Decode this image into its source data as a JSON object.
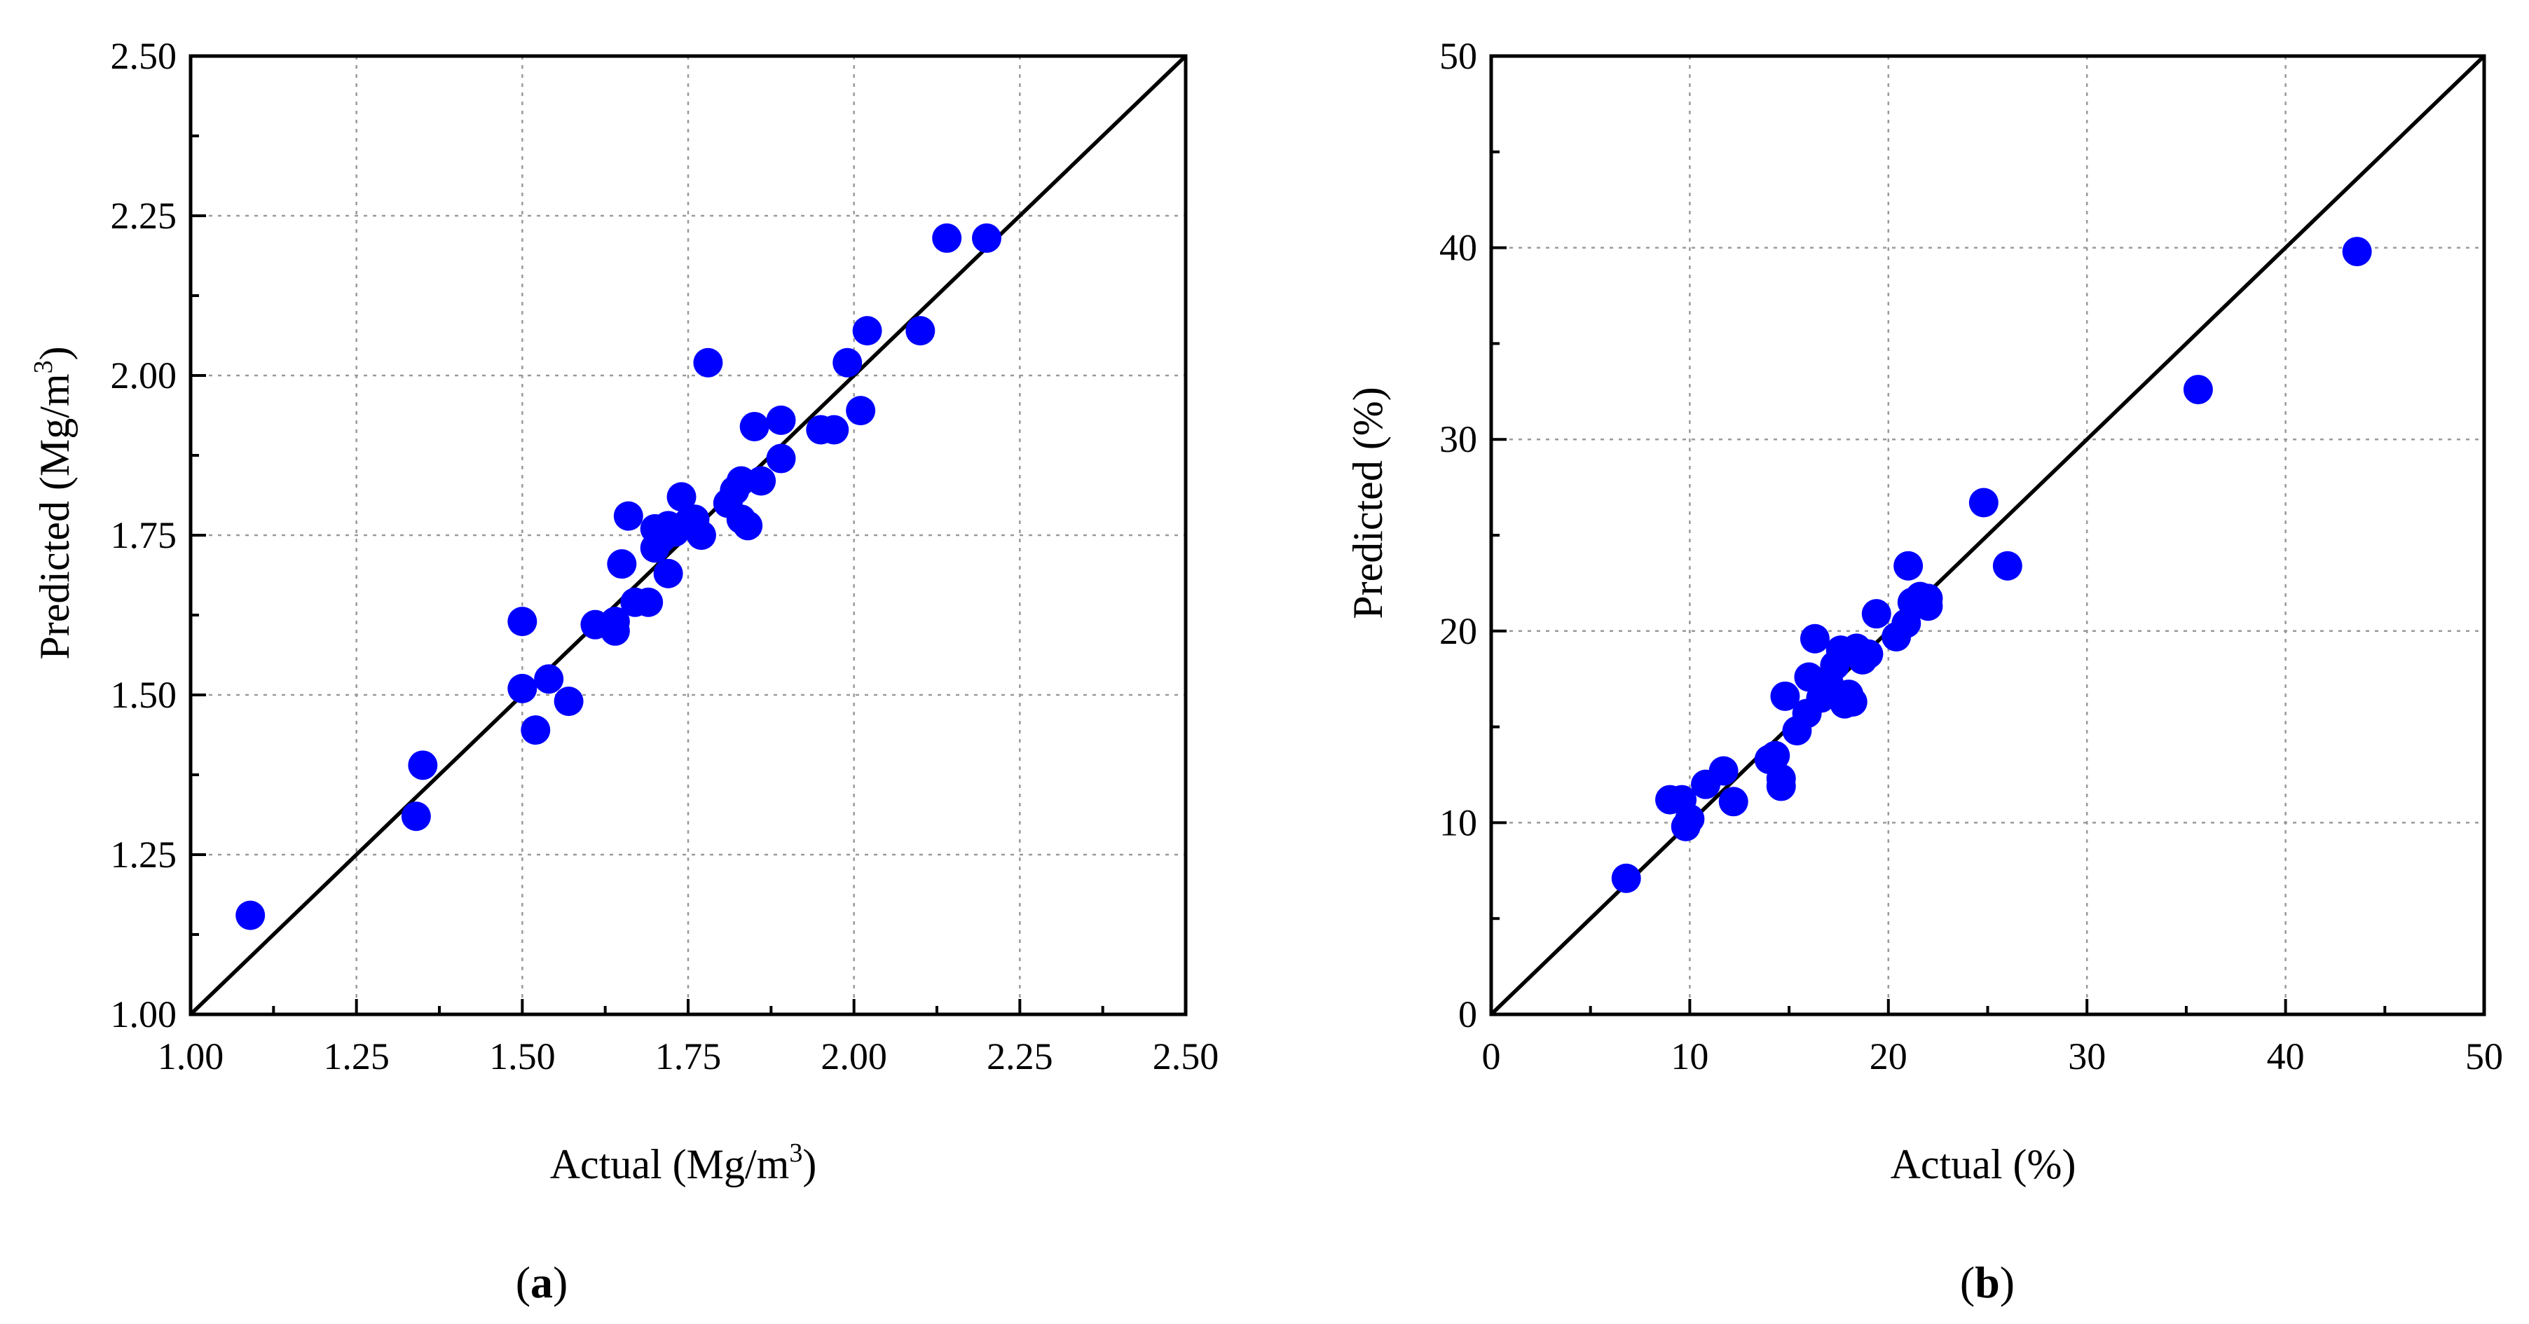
{
  "chart_data": [
    {
      "type": "scatter",
      "panel_label": "a",
      "title": "",
      "xlabel": "Actual (Mg/m",
      "xlabel_sup": "3",
      "xlabel_tail": ")",
      "ylabel": "Predicted (Mg/m",
      "ylabel_sup": "3",
      "ylabel_tail": ")",
      "xlim": [
        1.0,
        2.5
      ],
      "ylim": [
        1.0,
        2.5
      ],
      "xticks": [
        "1.00",
        "1.25",
        "1.50",
        "1.75",
        "2.00",
        "2.25",
        "2.50"
      ],
      "yticks": [
        "1.00",
        "1.25",
        "1.50",
        "1.75",
        "2.00",
        "2.25",
        "2.50"
      ],
      "grid": true,
      "reference_line": "y = x",
      "marker_color": "#0000ff",
      "points": [
        [
          1.09,
          1.155
        ],
        [
          1.34,
          1.31
        ],
        [
          1.35,
          1.39
        ],
        [
          1.5,
          1.615
        ],
        [
          1.5,
          1.51
        ],
        [
          1.52,
          1.445
        ],
        [
          1.54,
          1.525
        ],
        [
          1.57,
          1.49
        ],
        [
          1.61,
          1.61
        ],
        [
          1.64,
          1.6
        ],
        [
          1.64,
          1.615
        ],
        [
          1.65,
          1.705
        ],
        [
          1.66,
          1.78
        ],
        [
          1.67,
          1.645
        ],
        [
          1.69,
          1.645
        ],
        [
          1.7,
          1.73
        ],
        [
          1.7,
          1.76
        ],
        [
          1.71,
          1.745
        ],
        [
          1.72,
          1.69
        ],
        [
          1.72,
          1.765
        ],
        [
          1.73,
          1.755
        ],
        [
          1.74,
          1.81
        ],
        [
          1.75,
          1.77
        ],
        [
          1.76,
          1.775
        ],
        [
          1.77,
          1.75
        ],
        [
          1.78,
          2.02
        ],
        [
          1.81,
          1.8
        ],
        [
          1.82,
          1.82
        ],
        [
          1.83,
          1.835
        ],
        [
          1.83,
          1.775
        ],
        [
          1.84,
          1.765
        ],
        [
          1.85,
          1.92
        ],
        [
          1.86,
          1.835
        ],
        [
          1.89,
          1.93
        ],
        [
          1.89,
          1.87
        ],
        [
          1.95,
          1.915
        ],
        [
          1.97,
          1.915
        ],
        [
          1.99,
          2.02
        ],
        [
          2.01,
          1.945
        ],
        [
          2.02,
          2.07
        ],
        [
          2.1,
          2.07
        ],
        [
          2.14,
          2.215
        ],
        [
          2.2,
          2.215
        ]
      ]
    },
    {
      "type": "scatter",
      "panel_label": "b",
      "title": "",
      "xlabel": "Actual (%)",
      "ylabel": "Predicted (%)",
      "xlim": [
        0,
        50
      ],
      "ylim": [
        0,
        50
      ],
      "xticks": [
        "0",
        "10",
        "20",
        "30",
        "40",
        "50"
      ],
      "yticks": [
        "0",
        "10",
        "20",
        "30",
        "40",
        "50"
      ],
      "grid": true,
      "reference_line": "y = x",
      "marker_color": "#0000ff",
      "points": [
        [
          6.8,
          7.1
        ],
        [
          9.0,
          11.2
        ],
        [
          9.6,
          11.2
        ],
        [
          9.8,
          9.8
        ],
        [
          10.0,
          10.2
        ],
        [
          10.8,
          12.0
        ],
        [
          11.7,
          12.7
        ],
        [
          12.2,
          11.1
        ],
        [
          14.0,
          13.3
        ],
        [
          14.3,
          13.5
        ],
        [
          14.6,
          12.3
        ],
        [
          14.6,
          11.9
        ],
        [
          14.8,
          16.6
        ],
        [
          15.4,
          14.8
        ],
        [
          15.9,
          15.7
        ],
        [
          16.0,
          17.6
        ],
        [
          16.3,
          19.6
        ],
        [
          16.6,
          16.5
        ],
        [
          17.0,
          17.3
        ],
        [
          17.3,
          18.2
        ],
        [
          17.6,
          19.0
        ],
        [
          17.8,
          16.2
        ],
        [
          18.0,
          16.7
        ],
        [
          18.2,
          16.3
        ],
        [
          18.4,
          19.1
        ],
        [
          18.7,
          18.5
        ],
        [
          19.0,
          18.8
        ],
        [
          19.4,
          20.9
        ],
        [
          20.4,
          19.7
        ],
        [
          20.9,
          20.4
        ],
        [
          21.0,
          23.4
        ],
        [
          21.2,
          21.5
        ],
        [
          21.6,
          21.8
        ],
        [
          22.0,
          21.3
        ],
        [
          22.0,
          21.7
        ],
        [
          24.8,
          26.7
        ],
        [
          26.0,
          23.4
        ],
        [
          35.6,
          32.6
        ],
        [
          43.6,
          39.8
        ]
      ]
    }
  ]
}
